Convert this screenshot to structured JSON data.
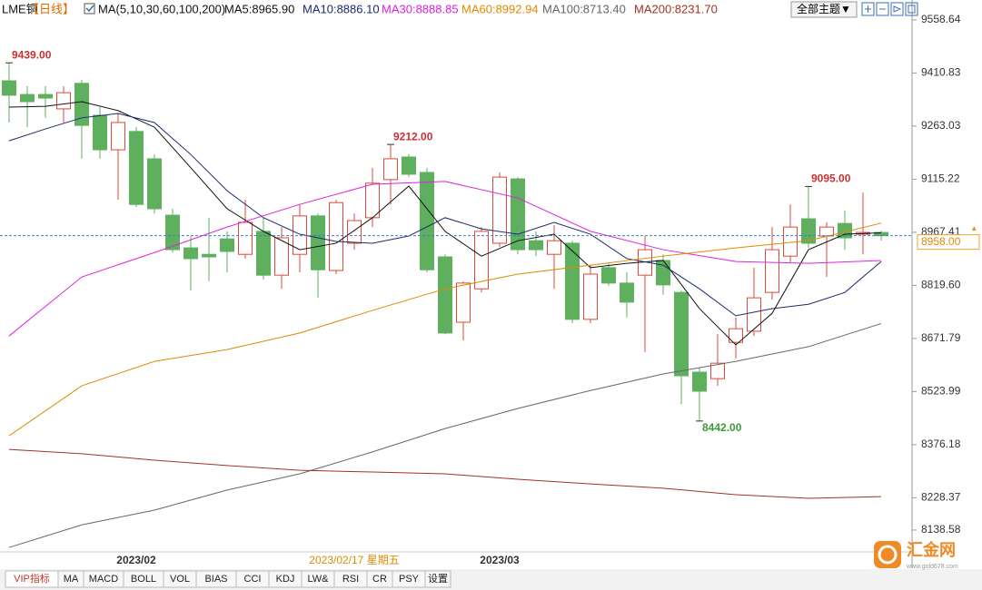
{
  "chart_data": {
    "type": "candlestick",
    "title": "LME铜",
    "period": "【日线】",
    "ma_label": "MA(5,10,30,60,100,200)",
    "categories": [
      null,
      null,
      null,
      null,
      null,
      null,
      null,
      "2023/02",
      null,
      null,
      null,
      null,
      null,
      null,
      null,
      null,
      null,
      null,
      null,
      "2023/02/17 星期五",
      null,
      null,
      null,
      null,
      null,
      null,
      null,
      "2023/03",
      null,
      null,
      null,
      null,
      null,
      null,
      null,
      null,
      null,
      null,
      null,
      null,
      null,
      null,
      null,
      null,
      null,
      null,
      null,
      null,
      null
    ],
    "highlighted_category": 19,
    "highlight_color": "#e08a00",
    "candles": {
      "up_color": "#d94a3a",
      "down_color": "#5eaf5e",
      "open": [
        9389,
        9351,
        9351,
        9311,
        9382,
        9293,
        9197,
        9248,
        9172,
        9015,
        8924,
        8906,
        8949,
        8906,
        8970,
        8848,
        8906,
        9013,
        8861,
        8937,
        9008,
        9114,
        9177,
        9134,
        8899,
        8717,
        8810,
        8937,
        9116,
        8944,
        8906,
        8937,
        8725,
        8869,
        8826,
        8848,
        8889,
        8800,
        8578,
        8560,
        8661,
        8692,
        8800,
        8901,
        9005,
        8957,
        8992,
        8962,
        8967
      ],
      "high": [
        9439,
        9374,
        9374,
        9374,
        9392,
        9316,
        9298,
        9260,
        9184,
        9033,
        8957,
        9008,
        8970,
        9058,
        9008,
        8982,
        9045,
        9020,
        9058,
        9020,
        9147,
        9212,
        9184,
        9147,
        8906,
        8831,
        8982,
        9134,
        9121,
        8970,
        8987,
        8944,
        8876,
        8881,
        8856,
        8957,
        8906,
        8805,
        8591,
        8684,
        8730,
        8869,
        8982,
        9045,
        9095,
        8995,
        9028,
        9078,
        8972
      ],
      "low": [
        9273,
        9260,
        9286,
        9273,
        9172,
        9172,
        9058,
        9038,
        9020,
        8911,
        8805,
        8831,
        8856,
        8894,
        8836,
        8810,
        8856,
        8785,
        8851,
        8919,
        8982,
        9045,
        9121,
        8856,
        8684,
        8666,
        8800,
        8927,
        8906,
        8901,
        8810,
        8714,
        8714,
        8818,
        8730,
        8634,
        8793,
        8489,
        8442,
        8540,
        8616,
        8679,
        8780,
        8881,
        8924,
        8843,
        8919,
        8906,
        8944
      ],
      "close": [
        9349,
        9331,
        9341,
        9356,
        9265,
        9197,
        9273,
        9045,
        9033,
        8919,
        8894,
        8899,
        8914,
        8995,
        8848,
        8952,
        9013,
        8863,
        9050,
        9000,
        9104,
        9172,
        9129,
        8863,
        8687,
        8826,
        8970,
        9121,
        8919,
        8919,
        8944,
        8725,
        8851,
        8826,
        8773,
        8919,
        8821,
        8568,
        8525,
        8603,
        8699,
        8785,
        8919,
        8982,
        8937,
        8982,
        8952,
        8967,
        8958
      ]
    },
    "series": [
      {
        "name": "MA5",
        "legend": "MA5:8965.90",
        "color": "#111111",
        "x": [
          0,
          2,
          4,
          6,
          8,
          10,
          12,
          14,
          16,
          18,
          20,
          22,
          24,
          26,
          28,
          30,
          32,
          34,
          36,
          38,
          40,
          42,
          44,
          46,
          48
        ],
        "values": [
          9316,
          9318,
          9331,
          9306,
          9260,
          9147,
          9033,
          8970,
          8919,
          8937,
          9008,
          9096,
          8970,
          8901,
          8944,
          8962,
          8869,
          8881,
          8889,
          8755,
          8654,
          8742,
          8919,
          8962,
          8965.9
        ]
      },
      {
        "name": "MA10",
        "legend": "MA10:8886.10",
        "color": "#1c2a6e",
        "x": [
          0,
          2,
          4,
          6,
          8,
          10,
          12,
          14,
          16,
          18,
          20,
          22,
          24,
          26,
          28,
          30,
          32,
          34,
          36,
          38,
          40,
          42,
          44,
          46,
          48
        ],
        "values": [
          9222,
          9255,
          9286,
          9298,
          9273,
          9184,
          9083,
          9008,
          8962,
          8942,
          8937,
          8957,
          9008,
          8977,
          8962,
          8995,
          8962,
          8894,
          8876,
          8810,
          8735,
          8755,
          8767,
          8800,
          8886.1
        ]
      },
      {
        "name": "MA30",
        "legend": "MA30:8888.85",
        "color": "#dd22dd",
        "x": [
          0,
          4,
          8,
          12,
          16,
          20,
          24,
          28,
          32,
          36,
          40,
          44,
          48
        ],
        "values": [
          8679,
          8843,
          8911,
          8982,
          9045,
          9101,
          9109,
          9063,
          8970,
          8919,
          8886,
          8881,
          8888.85
        ]
      },
      {
        "name": "MA60",
        "legend": "MA60:8992.94",
        "color": "#e08a00",
        "x": [
          0,
          4,
          8,
          12,
          16,
          20,
          24,
          28,
          32,
          36,
          40,
          44,
          48
        ],
        "values": [
          8401,
          8540,
          8608,
          8641,
          8687,
          8750,
          8810,
          8851,
          8876,
          8901,
          8924,
          8944,
          8992.94
        ]
      },
      {
        "name": "MA100",
        "legend": "MA100:8713.40",
        "color": "#666666",
        "x": [
          0,
          4,
          8,
          12,
          16,
          20,
          24,
          28,
          32,
          36,
          40,
          44,
          48
        ],
        "values": [
          8090,
          8153,
          8194,
          8250,
          8295,
          8356,
          8421,
          8477,
          8527,
          8573,
          8608,
          8649,
          8713.4
        ]
      },
      {
        "name": "MA200",
        "legend": "MA200:8231.70",
        "color": "#a23222",
        "x": [
          0,
          4,
          8,
          12,
          16,
          20,
          24,
          28,
          32,
          36,
          40,
          44,
          48
        ],
        "values": [
          8363,
          8351,
          8333,
          8318,
          8305,
          8300,
          8295,
          8280,
          8267,
          8255,
          8237,
          8227,
          8231.7
        ]
      }
    ],
    "ylim": [
      8098,
      9614
    ],
    "yticks": [
      9558.64,
      9410.83,
      9263.03,
      9115.22,
      8967.41,
      {
        "value": 8819.6,
        "label": "8819.60"
      },
      8671.79,
      8523.99,
      8376.18,
      8228.37,
      8138.58
    ],
    "grid": false,
    "annotations": [
      {
        "value": 9439,
        "label": "9439.00"
      },
      {
        "value": 9212,
        "label": "9212.00"
      },
      {
        "value": 9095,
        "label": "9095.00"
      },
      {
        "value": 8442,
        "label": "8442.00"
      }
    ],
    "high_color": "#c83232",
    "low_color": "#3a9a3a",
    "current_price": {
      "value": 8958,
      "label": "8958.00"
    }
  },
  "toolbar": {
    "theme_button": "全部主题▼",
    "tabs": [
      "VIP指标",
      "MA",
      "MACD",
      "BOLL",
      "VOL",
      "BIAS",
      "CCI",
      "KDJ",
      "LW&",
      "RSI",
      "CR",
      "PSY",
      "设置"
    ]
  },
  "logo": {
    "name": "汇金网",
    "url": "www.gold678.com"
  }
}
